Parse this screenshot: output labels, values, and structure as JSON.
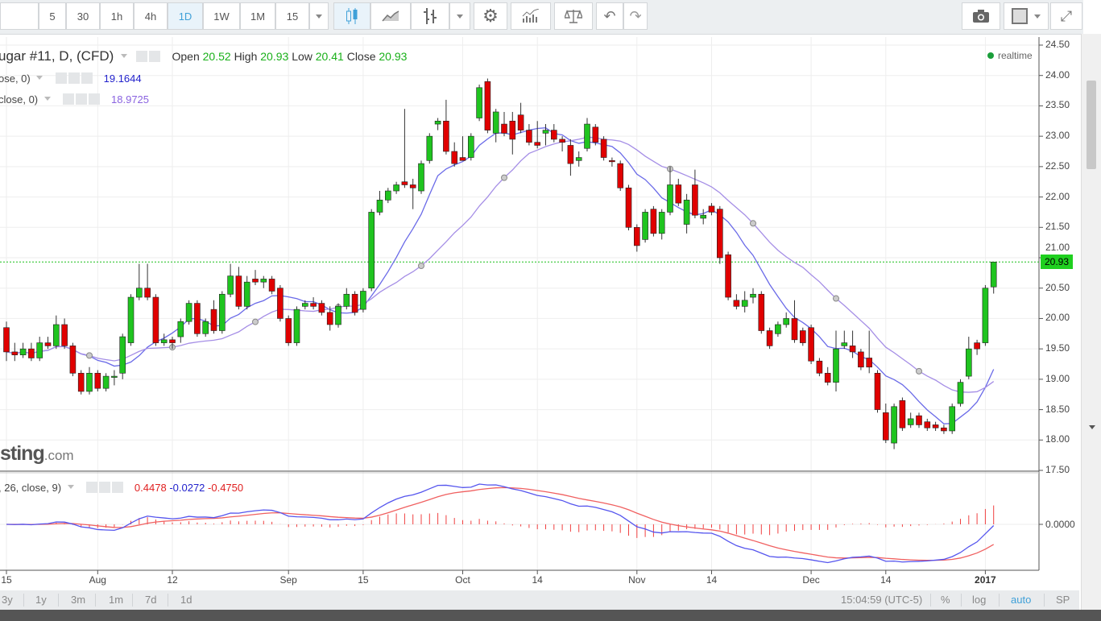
{
  "toolbar": {
    "intervals": [
      "5",
      "30",
      "1h",
      "4h",
      "1D",
      "1W",
      "1M",
      "15"
    ],
    "active_interval": "1D",
    "icons": [
      "candles-icon",
      "line-chart-icon",
      "bars-icon",
      "gear-icon",
      "indicators-icon",
      "compare-scales-icon",
      "undo-icon",
      "redo-icon",
      "camera-icon",
      "square-icon",
      "fullscreen-icon"
    ]
  },
  "legend": {
    "symbol": "ugar #11, D, (CFD)",
    "open_label": "Open",
    "open": "20.52",
    "high_label": "High",
    "high": "20.93",
    "low_label": "Low",
    "low": "20.41",
    "close_label": "Close",
    "close": "20.93",
    "ma1_label": "ose, 0)",
    "ma1_value": "19.1644",
    "ma2_label": "close, 0)",
    "ma2_value": "18.9725",
    "macd_label": ", 26, close, 9)",
    "macd_hist": "0.4478",
    "macd_line": "-0.0272",
    "macd_signal": "-0.4750",
    "realtime": "realtime"
  },
  "watermark": {
    "main": "sting",
    "suffix": ".com"
  },
  "colors": {
    "up": "#1fc41f",
    "down": "#e00000",
    "ma1": "#6a6ae8",
    "ma2": "#a58ee6",
    "macd": "#5555ee",
    "signal": "#f06060",
    "hist": "#f04040",
    "last_price_line": "#19c019",
    "accent": "#3fa0d8"
  },
  "chart_data": {
    "type": "candlestick",
    "ylim": [
      17.5,
      24.5
    ],
    "yticks": [
      "24.50",
      "24.00",
      "23.50",
      "23.00",
      "22.50",
      "22.00",
      "21.50",
      "21.00",
      "20.50",
      "20.00",
      "19.50",
      "19.00",
      "18.50",
      "18.00",
      "17.50"
    ],
    "last_price": "20.93",
    "macd_zero_label": "0.0000",
    "xticks": [
      {
        "date": "2016-07-15",
        "label": "15"
      },
      {
        "date": "2016-08-01",
        "label": "Aug"
      },
      {
        "date": "2016-08-12",
        "label": "12"
      },
      {
        "date": "2016-09-01",
        "label": "Sep"
      },
      {
        "date": "2016-09-15",
        "label": "15"
      },
      {
        "date": "2016-10-03",
        "label": "Oct"
      },
      {
        "date": "2016-10-14",
        "label": "14"
      },
      {
        "date": "2016-11-01",
        "label": "Nov"
      },
      {
        "date": "2016-11-14",
        "label": "14"
      },
      {
        "date": "2016-12-01",
        "label": "Dec"
      },
      {
        "date": "2016-12-14",
        "label": "14"
      },
      {
        "date": "2017-01-03",
        "label": "2017",
        "bold": true
      }
    ],
    "columns": [
      "date",
      "open",
      "high",
      "low",
      "close"
    ],
    "candles": [
      [
        "2016-07-15",
        19.85,
        19.95,
        19.3,
        19.45
      ],
      [
        "2016-07-18",
        19.45,
        19.6,
        19.3,
        19.4
      ],
      [
        "2016-07-19",
        19.4,
        19.6,
        19.35,
        19.5
      ],
      [
        "2016-07-20",
        19.5,
        19.6,
        19.3,
        19.35
      ],
      [
        "2016-07-21",
        19.35,
        19.7,
        19.3,
        19.6
      ],
      [
        "2016-07-22",
        19.6,
        19.7,
        19.5,
        19.55
      ],
      [
        "2016-07-25",
        19.55,
        20.05,
        19.5,
        19.9
      ],
      [
        "2016-07-26",
        19.9,
        20.0,
        19.5,
        19.55
      ],
      [
        "2016-07-27",
        19.55,
        19.6,
        19.05,
        19.1
      ],
      [
        "2016-07-28",
        19.1,
        19.15,
        18.75,
        18.8
      ],
      [
        "2016-07-29",
        18.8,
        19.2,
        18.75,
        19.1
      ],
      [
        "2016-08-01",
        19.1,
        19.15,
        18.8,
        18.85
      ],
      [
        "2016-08-02",
        18.85,
        19.1,
        18.8,
        19.05
      ],
      [
        "2016-08-03",
        19.05,
        19.15,
        18.9,
        19.05
      ],
      [
        "2016-08-04",
        19.1,
        19.75,
        19.0,
        19.7
      ],
      [
        "2016-08-05",
        19.6,
        20.4,
        19.55,
        20.35
      ],
      [
        "2016-08-08",
        20.35,
        20.9,
        20.3,
        20.5
      ],
      [
        "2016-08-09",
        20.5,
        20.9,
        20.3,
        20.35
      ],
      [
        "2016-08-10",
        20.35,
        20.4,
        19.55,
        19.6
      ],
      [
        "2016-08-11",
        19.6,
        19.75,
        19.55,
        19.65
      ],
      [
        "2016-08-12",
        19.65,
        19.7,
        19.5,
        19.6
      ],
      [
        "2016-08-15",
        19.7,
        20.0,
        19.6,
        19.95
      ],
      [
        "2016-08-16",
        19.95,
        20.3,
        19.9,
        20.25
      ],
      [
        "2016-08-17",
        20.25,
        20.3,
        19.7,
        19.75
      ],
      [
        "2016-08-18",
        19.75,
        20.0,
        19.7,
        19.95
      ],
      [
        "2016-08-19",
        20.15,
        20.3,
        19.75,
        19.8
      ],
      [
        "2016-08-22",
        19.8,
        20.45,
        19.75,
        20.4
      ],
      [
        "2016-08-23",
        20.4,
        20.9,
        20.35,
        20.7
      ],
      [
        "2016-08-24",
        20.7,
        20.85,
        20.15,
        20.2
      ],
      [
        "2016-08-25",
        20.2,
        20.7,
        20.15,
        20.6
      ],
      [
        "2016-08-26",
        20.65,
        20.8,
        20.55,
        20.6
      ],
      [
        "2016-08-29",
        20.6,
        20.7,
        20.5,
        20.65
      ],
      [
        "2016-08-30",
        20.65,
        20.7,
        20.4,
        20.45
      ],
      [
        "2016-08-31",
        20.5,
        20.55,
        19.95,
        20.0
      ],
      [
        "2016-09-01",
        20.0,
        20.05,
        19.55,
        19.6
      ],
      [
        "2016-09-02",
        19.6,
        20.2,
        19.55,
        20.15
      ],
      [
        "2016-09-06",
        20.2,
        20.3,
        20.15,
        20.25
      ],
      [
        "2016-09-07",
        20.25,
        20.35,
        20.15,
        20.2
      ],
      [
        "2016-09-08",
        20.25,
        20.3,
        20.05,
        20.1
      ],
      [
        "2016-09-09",
        20.1,
        20.2,
        19.8,
        19.9
      ],
      [
        "2016-09-12",
        19.9,
        20.25,
        19.85,
        20.2
      ],
      [
        "2016-09-13",
        20.2,
        20.5,
        20.15,
        20.4
      ],
      [
        "2016-09-14",
        20.4,
        20.45,
        20.05,
        20.1
      ],
      [
        "2016-09-15",
        20.15,
        20.5,
        20.1,
        20.45
      ],
      [
        "2016-09-16",
        20.5,
        21.8,
        20.45,
        21.75
      ],
      [
        "2016-09-19",
        21.75,
        22.1,
        21.7,
        21.95
      ],
      [
        "2016-09-20",
        21.95,
        22.15,
        21.9,
        22.1
      ],
      [
        "2016-09-21",
        22.1,
        22.25,
        22.05,
        22.2
      ],
      [
        "2016-09-22",
        22.25,
        23.45,
        22.15,
        22.2
      ],
      [
        "2016-09-23",
        22.2,
        22.3,
        21.8,
        22.15
      ],
      [
        "2016-09-26",
        22.1,
        22.6,
        22.05,
        22.55
      ],
      [
        "2016-09-27",
        22.6,
        23.05,
        22.55,
        23.0
      ],
      [
        "2016-09-28",
        23.2,
        23.3,
        23.1,
        23.25
      ],
      [
        "2016-09-29",
        23.25,
        23.6,
        22.7,
        22.75
      ],
      [
        "2016-09-30",
        22.75,
        22.9,
        22.5,
        22.55
      ],
      [
        "2016-10-03",
        22.65,
        23.0,
        22.6,
        22.6
      ],
      [
        "2016-10-04",
        22.65,
        23.05,
        22.6,
        23.0
      ],
      [
        "2016-10-05",
        23.3,
        23.85,
        23.25,
        23.8
      ],
      [
        "2016-10-06",
        23.9,
        23.95,
        23.05,
        23.1
      ],
      [
        "2016-10-07",
        23.05,
        23.45,
        22.9,
        23.4
      ],
      [
        "2016-10-10",
        23.2,
        23.4,
        23.0,
        23.05
      ],
      [
        "2016-10-11",
        23.25,
        23.4,
        22.7,
        22.95
      ],
      [
        "2016-10-12",
        23.35,
        23.55,
        23.05,
        23.1
      ],
      [
        "2016-10-13",
        23.1,
        23.2,
        22.85,
        22.9
      ],
      [
        "2016-10-14",
        22.9,
        23.25,
        22.8,
        22.85
      ],
      [
        "2016-10-17",
        23.05,
        23.2,
        22.85,
        23.1
      ],
      [
        "2016-10-18",
        23.1,
        23.2,
        22.9,
        22.95
      ],
      [
        "2016-10-19",
        22.95,
        23.0,
        22.75,
        22.9
      ],
      [
        "2016-10-20",
        22.85,
        22.95,
        22.35,
        22.55
      ],
      [
        "2016-10-21",
        22.6,
        22.75,
        22.5,
        22.65
      ],
      [
        "2016-10-24",
        22.8,
        23.3,
        22.75,
        23.2
      ],
      [
        "2016-10-25",
        23.15,
        23.2,
        22.85,
        22.9
      ],
      [
        "2016-10-26",
        22.95,
        23.0,
        22.6,
        22.65
      ],
      [
        "2016-10-27",
        22.6,
        22.65,
        22.5,
        22.58
      ],
      [
        "2016-10-28",
        22.55,
        22.6,
        22.1,
        22.15
      ],
      [
        "2016-10-31",
        22.15,
        22.2,
        21.45,
        21.5
      ],
      [
        "2016-11-01",
        21.5,
        21.55,
        21.1,
        21.2
      ],
      [
        "2016-11-02",
        21.3,
        21.8,
        21.25,
        21.75
      ],
      [
        "2016-11-03",
        21.8,
        21.85,
        21.35,
        21.4
      ],
      [
        "2016-11-04",
        21.4,
        21.8,
        21.3,
        21.75
      ],
      [
        "2016-11-07",
        21.75,
        22.5,
        21.7,
        22.2
      ],
      [
        "2016-11-08",
        22.2,
        22.3,
        21.85,
        21.9
      ],
      [
        "2016-11-09",
        21.55,
        22.05,
        21.4,
        21.95
      ],
      [
        "2016-11-10",
        22.2,
        22.45,
        21.65,
        21.7
      ],
      [
        "2016-11-11",
        21.65,
        21.8,
        21.55,
        21.7
      ],
      [
        "2016-11-14",
        21.85,
        21.9,
        21.7,
        21.75
      ],
      [
        "2016-11-15",
        21.8,
        21.85,
        20.9,
        21.0
      ],
      [
        "2016-11-16",
        21.05,
        21.1,
        20.3,
        20.35
      ],
      [
        "2016-11-17",
        20.3,
        20.4,
        20.15,
        20.2
      ],
      [
        "2016-11-18",
        20.2,
        20.45,
        20.1,
        20.3
      ],
      [
        "2016-11-21",
        20.35,
        20.5,
        20.25,
        20.4
      ],
      [
        "2016-11-22",
        20.4,
        20.45,
        19.75,
        19.8
      ],
      [
        "2016-11-23",
        19.8,
        19.85,
        19.5,
        19.55
      ],
      [
        "2016-11-25",
        19.75,
        19.95,
        19.7,
        19.9
      ],
      [
        "2016-11-28",
        19.9,
        20.1,
        19.85,
        20.0
      ],
      [
        "2016-11-29",
        20.0,
        20.3,
        19.6,
        19.65
      ],
      [
        "2016-11-30",
        19.8,
        19.85,
        19.55,
        19.6
      ],
      [
        "2016-12-01",
        19.85,
        19.9,
        19.25,
        19.3
      ],
      [
        "2016-12-02",
        19.3,
        19.35,
        19.05,
        19.1
      ],
      [
        "2016-12-05",
        19.1,
        19.2,
        18.9,
        18.95
      ],
      [
        "2016-12-06",
        18.95,
        19.8,
        18.8,
        19.5
      ],
      [
        "2016-12-07",
        19.55,
        19.8,
        19.5,
        19.6
      ],
      [
        "2016-12-08",
        19.55,
        19.8,
        19.35,
        19.45
      ],
      [
        "2016-12-09",
        19.45,
        19.5,
        19.15,
        19.2
      ],
      [
        "2016-12-12",
        19.35,
        19.8,
        19.1,
        19.2
      ],
      [
        "2016-12-13",
        19.1,
        19.15,
        18.45,
        18.5
      ],
      [
        "2016-12-14",
        18.45,
        18.6,
        17.95,
        18.0
      ],
      [
        "2016-12-15",
        17.95,
        18.6,
        17.85,
        18.55
      ],
      [
        "2016-12-16",
        18.65,
        18.7,
        18.15,
        18.2
      ],
      [
        "2016-12-19",
        18.25,
        18.45,
        18.2,
        18.35
      ],
      [
        "2016-12-20",
        18.4,
        18.45,
        18.2,
        18.25
      ],
      [
        "2016-12-21",
        18.3,
        18.35,
        18.15,
        18.2
      ],
      [
        "2016-12-22",
        18.25,
        18.3,
        18.15,
        18.2
      ],
      [
        "2016-12-23",
        18.2,
        18.25,
        18.1,
        18.15
      ],
      [
        "2016-12-27",
        18.15,
        18.6,
        18.1,
        18.55
      ],
      [
        "2016-12-28",
        18.6,
        19.0,
        18.55,
        18.95
      ],
      [
        "2016-12-29",
        19.05,
        19.7,
        19.0,
        19.5
      ],
      [
        "2016-12-30",
        19.6,
        19.65,
        19.4,
        19.5
      ],
      [
        "2017-01-03",
        19.6,
        20.55,
        19.55,
        20.5
      ],
      [
        "2017-01-04",
        20.52,
        20.93,
        20.41,
        20.93
      ]
    ]
  },
  "bottom": {
    "ranges": [
      "3y",
      "1y",
      "3m",
      "1m",
      "7d",
      "1d"
    ],
    "clock": "15:04:59 (UTC-5)",
    "percent": "%",
    "log": "log",
    "auto": "auto",
    "sp": "SP"
  }
}
